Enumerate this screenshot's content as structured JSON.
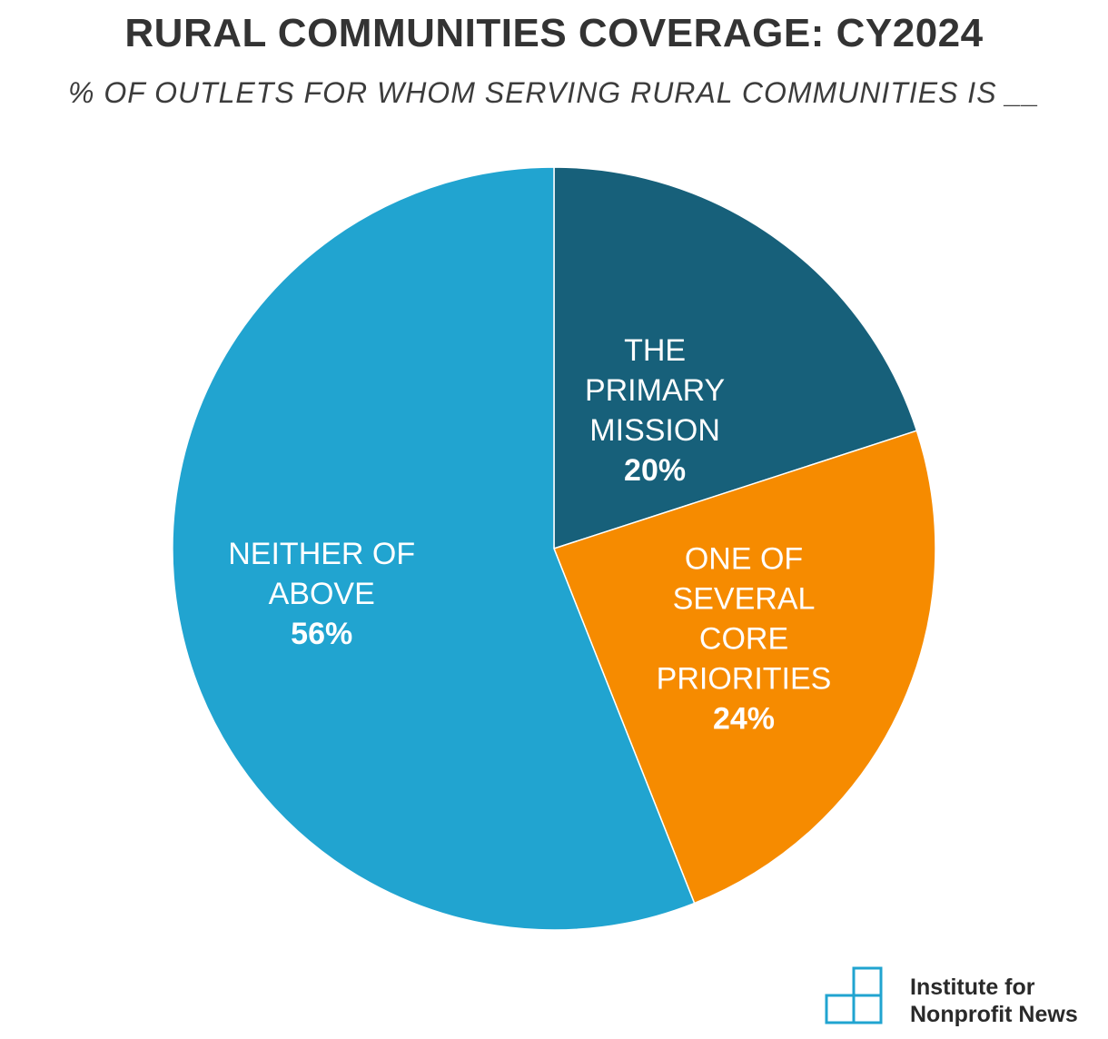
{
  "title": "RURAL COMMUNITIES COVERAGE: CY2024",
  "subtitle": "% OF OUTLETS FOR WHOM SERVING RURAL COMMUNITIES IS __",
  "chart_data": {
    "type": "pie",
    "start_angle_deg": 0,
    "direction": "clockwise",
    "slices": [
      {
        "label_lines": [
          "THE",
          "PRIMARY",
          "MISSION"
        ],
        "value": 20,
        "value_label": "20%",
        "color": "#17607a"
      },
      {
        "label_lines": [
          "ONE OF",
          "SEVERAL",
          "CORE",
          "PRIORITIES"
        ],
        "value": 24,
        "value_label": "24%",
        "color": "#f68b00"
      },
      {
        "label_lines": [
          "NEITHER OF",
          "ABOVE"
        ],
        "value": 56,
        "value_label": "56%",
        "color": "#21a4d0"
      }
    ]
  },
  "logo": {
    "line1": "Institute for",
    "line2": "Nonprofit News",
    "color": "#21a4d0"
  }
}
